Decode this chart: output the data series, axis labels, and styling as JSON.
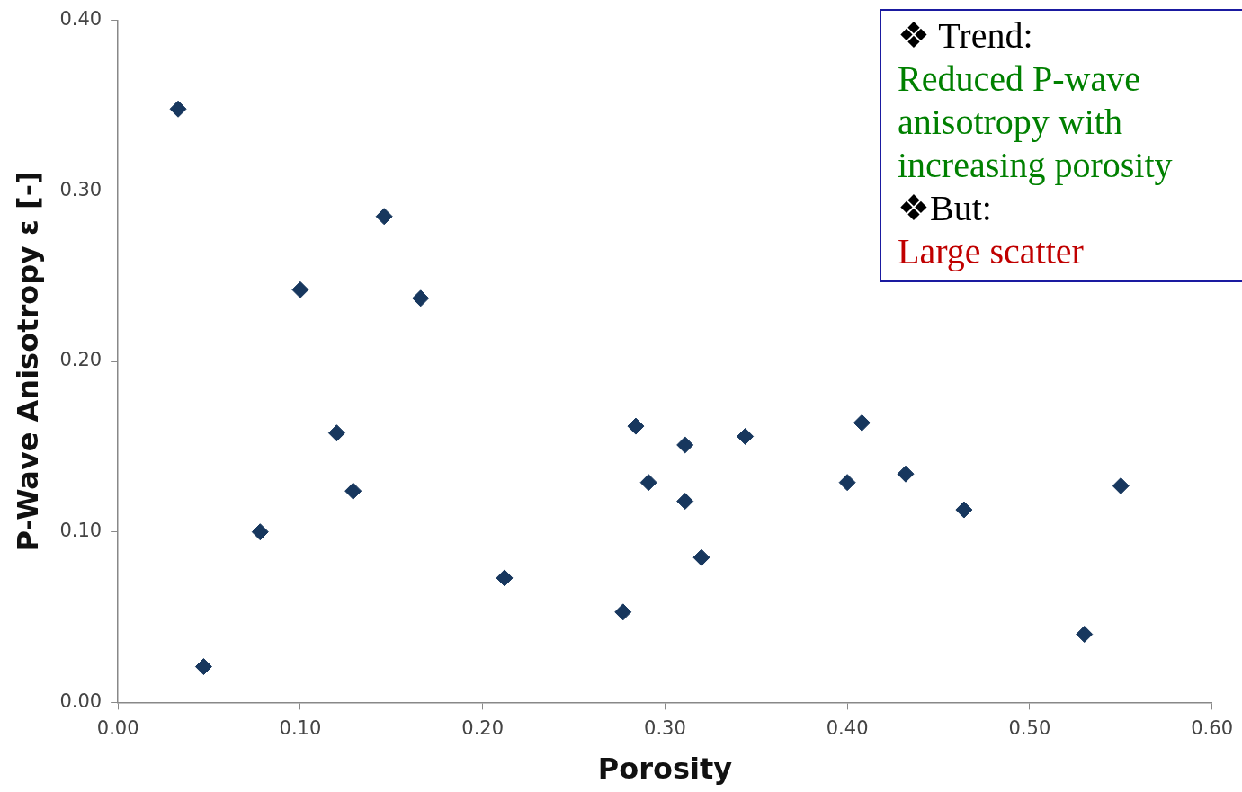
{
  "chart_data": {
    "type": "scatter",
    "xlabel": "Porosity",
    "ylabel": "P-Wave Anisotropy ε [-]",
    "series": [
      {
        "color": "#17375e",
        "x": [
          0.033,
          0.047,
          0.078,
          0.1,
          0.12,
          0.129,
          0.146,
          0.166,
          0.212,
          0.277,
          0.284,
          0.291,
          0.311,
          0.311,
          0.32,
          0.344,
          0.4,
          0.408,
          0.432,
          0.464,
          0.53,
          0.55
        ],
        "values": [
          0.348,
          0.021,
          0.1,
          0.242,
          0.158,
          0.124,
          0.285,
          0.237,
          0.073,
          0.053,
          0.162,
          0.129,
          0.151,
          0.118,
          0.085,
          0.156,
          0.129,
          0.164,
          0.134,
          0.113,
          0.04,
          0.127
        ]
      }
    ],
    "xlim": [
      0,
      0.6
    ],
    "ylim": [
      0,
      0.4
    ],
    "xticks": [
      {
        "value": 0,
        "label": "0.00"
      },
      {
        "value": 0.1,
        "label": "0.10"
      },
      {
        "value": 0.2,
        "label": "0.20"
      },
      {
        "value": 0.3,
        "label": "0.30"
      },
      {
        "value": 0.4,
        "label": "0.40"
      },
      {
        "value": 0.5,
        "label": "0.50"
      },
      {
        "value": 0.6,
        "label": "0.60"
      }
    ],
    "yticks": [
      {
        "value": 0,
        "label": "0.00"
      },
      {
        "value": 0.1,
        "label": "0.10"
      },
      {
        "value": 0.2,
        "label": "0.20"
      },
      {
        "value": 0.3,
        "label": "0.30"
      },
      {
        "value": 0.4,
        "label": "0.40"
      }
    ],
    "grid": false,
    "legend": false,
    "marker": "diamond",
    "annotations": [
      "❖   Trend:",
      "Reduced P-wave anisotropy with increasing porosity",
      "❖But:",
      "Large scatter"
    ]
  }
}
